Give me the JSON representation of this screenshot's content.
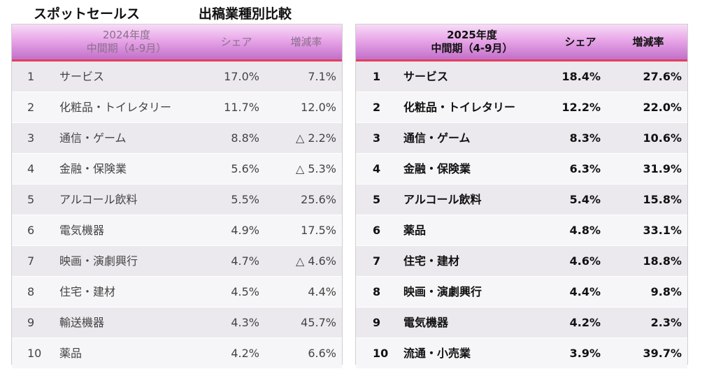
{
  "page": {
    "title_left": "スポットセールス",
    "title_right": "出稿業種別比較"
  },
  "left": {
    "header": {
      "period_line1": "2024年度",
      "period_line2": "中間期（4-9月）",
      "share": "シェア",
      "change": "増減率"
    },
    "rows": [
      {
        "rank": "1",
        "name": "サービス",
        "share": "17.0%",
        "change": "7.1%"
      },
      {
        "rank": "2",
        "name": "化粧品・トイレタリー",
        "share": "11.7%",
        "change": "12.0%"
      },
      {
        "rank": "3",
        "name": "通信・ゲーム",
        "share": "8.8%",
        "change": "△ 2.2%"
      },
      {
        "rank": "4",
        "name": "金融・保険業",
        "share": "5.6%",
        "change": "△ 5.3%"
      },
      {
        "rank": "5",
        "name": "アルコール飲料",
        "share": "5.5%",
        "change": "25.6%"
      },
      {
        "rank": "6",
        "name": "電気機器",
        "share": "4.9%",
        "change": "17.5%"
      },
      {
        "rank": "7",
        "name": "映画・演劇興行",
        "share": "4.7%",
        "change": "△ 4.6%"
      },
      {
        "rank": "8",
        "name": "住宅・建材",
        "share": "4.5%",
        "change": "4.4%"
      },
      {
        "rank": "9",
        "name": "輸送機器",
        "share": "4.3%",
        "change": "45.7%"
      },
      {
        "rank": "10",
        "name": "薬品",
        "share": "4.2%",
        "change": "6.6%"
      }
    ]
  },
  "right": {
    "header": {
      "period_line1": "2025年度",
      "period_line2": "中間期（4-9月）",
      "share": "シェア",
      "change": "増減率"
    },
    "rows": [
      {
        "rank": "1",
        "name": "サービス",
        "share": "18.4%",
        "change": "27.6%"
      },
      {
        "rank": "2",
        "name": "化粧品・トイレタリー",
        "share": "12.2%",
        "change": "22.0%"
      },
      {
        "rank": "3",
        "name": "通信・ゲーム",
        "share": "8.3%",
        "change": "10.6%"
      },
      {
        "rank": "4",
        "name": "金融・保険業",
        "share": "6.3%",
        "change": "31.9%"
      },
      {
        "rank": "5",
        "name": "アルコール飲料",
        "share": "5.4%",
        "change": "15.8%"
      },
      {
        "rank": "6",
        "name": "薬品",
        "share": "4.8%",
        "change": "33.1%"
      },
      {
        "rank": "7",
        "name": "住宅・建材",
        "share": "4.6%",
        "change": "18.8%"
      },
      {
        "rank": "8",
        "name": "映画・演劇興行",
        "share": "4.4%",
        "change": "9.8%"
      },
      {
        "rank": "9",
        "name": "電気機器",
        "share": "4.2%",
        "change": "2.3%"
      },
      {
        "rank": "10",
        "name": "流通・小売業",
        "share": "3.9%",
        "change": "39.7%"
      }
    ]
  }
}
